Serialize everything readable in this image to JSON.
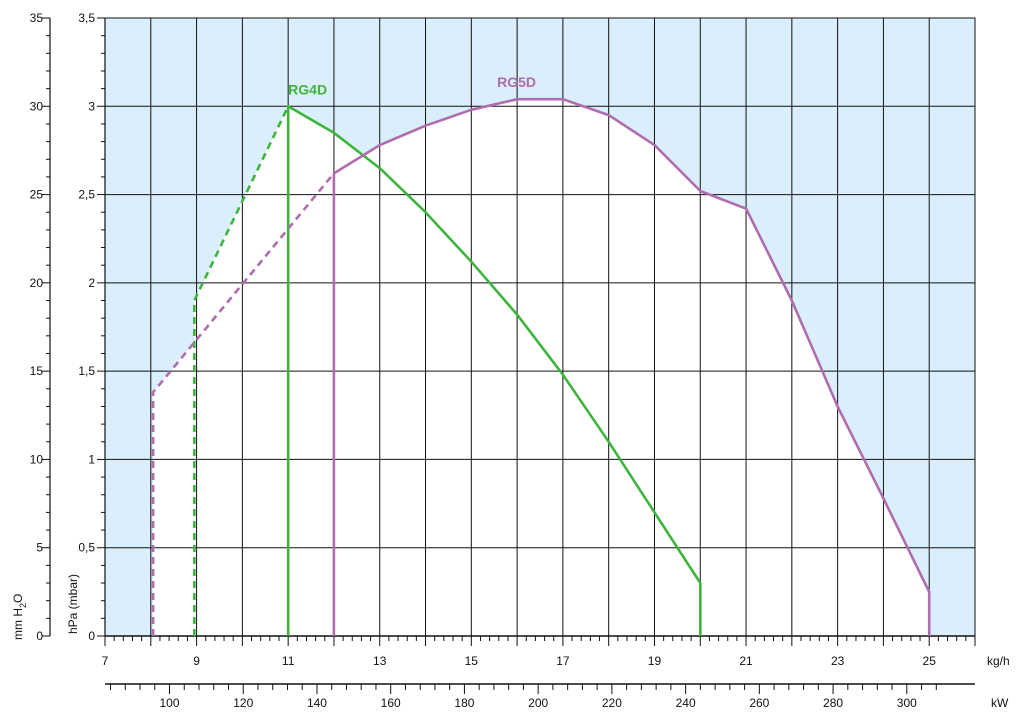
{
  "chart_data": {
    "type": "line",
    "title": "",
    "x_range": [
      7,
      26
    ],
    "x_ticks": [
      7,
      9,
      11,
      13,
      15,
      17,
      19,
      21,
      23,
      25
    ],
    "x_unit": "kg/h",
    "x_secondary_ticks": [
      100,
      120,
      140,
      160,
      180,
      200,
      220,
      240,
      260,
      280,
      300
    ],
    "x_secondary_unit": "kW",
    "y_range": [
      0,
      3.5
    ],
    "y_ticks": [
      "0",
      "0,5",
      "1",
      "1,5",
      "2",
      "2,5",
      "3",
      "3,5"
    ],
    "y_label": "hPa (mbar)",
    "y_secondary_ticks": [
      "0",
      "5",
      "10",
      "15",
      "20",
      "25",
      "30",
      "35"
    ],
    "y_secondary_label_parts": [
      "mm H",
      "2",
      "O"
    ],
    "grid": true,
    "series": [
      {
        "name": "RG4D",
        "color": "#3db53d",
        "dashed": [
          [
            8.95,
            0
          ],
          [
            8.95,
            1.9
          ],
          [
            11,
            3.0
          ]
        ],
        "solid": [
          [
            11,
            0
          ],
          [
            11,
            3.0
          ],
          [
            12,
            2.85
          ],
          [
            13,
            2.65
          ],
          [
            14,
            2.4
          ],
          [
            15,
            2.12
          ],
          [
            16,
            1.82
          ],
          [
            17,
            1.48
          ],
          [
            18,
            1.1
          ],
          [
            19,
            0.7
          ],
          [
            20,
            0.3
          ],
          [
            20,
            0
          ]
        ]
      },
      {
        "name": "RG5D",
        "color": "#b06cb0",
        "dashed": [
          [
            8.05,
            0
          ],
          [
            8.05,
            1.38
          ],
          [
            12,
            2.62
          ]
        ],
        "solid": [
          [
            12,
            0
          ],
          [
            12,
            2.62
          ],
          [
            13,
            2.78
          ],
          [
            14,
            2.89
          ],
          [
            15,
            2.98
          ],
          [
            16,
            3.04
          ],
          [
            17,
            3.04
          ],
          [
            18,
            2.95
          ],
          [
            19,
            2.78
          ],
          [
            20,
            2.52
          ],
          [
            21,
            2.42
          ],
          [
            22,
            1.9
          ],
          [
            23,
            1.3
          ],
          [
            24,
            0.78
          ],
          [
            25,
            0.25
          ],
          [
            25,
            0
          ]
        ]
      }
    ],
    "region_colors": {
      "background": "#dbeefb",
      "envelope": "#ffffff",
      "grid": "#111111"
    }
  }
}
